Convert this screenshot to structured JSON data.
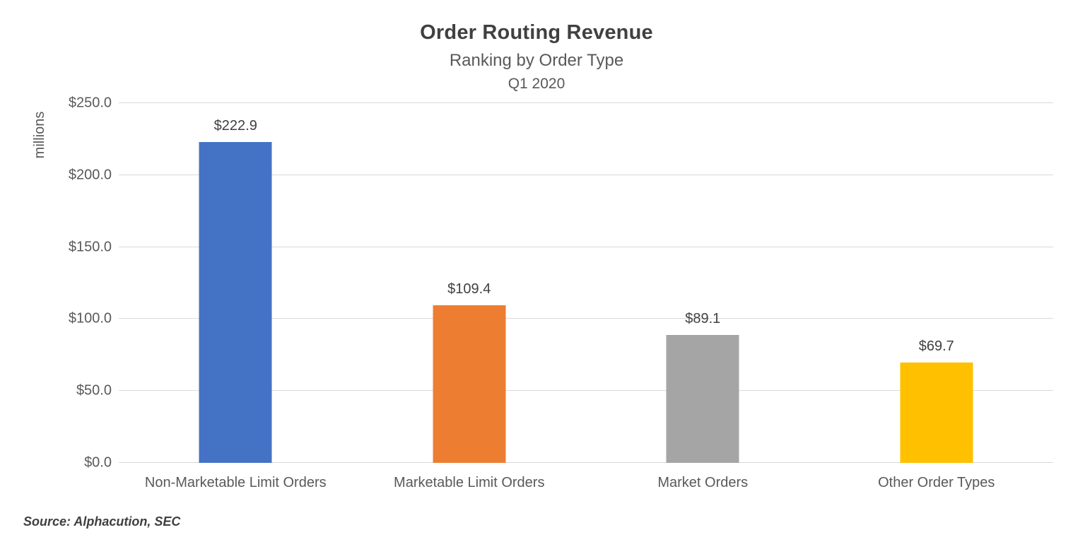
{
  "chart_data": {
    "type": "bar",
    "title": "Order Routing Revenue",
    "subtitle": "Ranking by Order Type",
    "period": "Q1 2020",
    "y_axis_title": "millions",
    "categories": [
      "Non-Marketable Limit Orders",
      "Marketable Limit Orders",
      "Market Orders",
      "Other Order Types"
    ],
    "values": [
      222.9,
      109.4,
      89.1,
      69.7
    ],
    "data_labels": [
      "$222.9",
      "$109.4",
      "$89.1",
      "$69.7"
    ],
    "bar_colors": [
      "#4472C4",
      "#ED7D31",
      "#A5A5A5",
      "#FFC000"
    ],
    "ylim": [
      0,
      250
    ],
    "yticks": [
      {
        "value": 0,
        "label": "$0.0"
      },
      {
        "value": 50,
        "label": "$50.0"
      },
      {
        "value": 100,
        "label": "$100.0"
      },
      {
        "value": 150,
        "label": "$150.0"
      },
      {
        "value": 200,
        "label": "$200.0"
      },
      {
        "value": 250,
        "label": "$250.0"
      }
    ],
    "grid": true,
    "legend_position": "none",
    "gridline_color": "#D9D9D9",
    "source": "Source: Alphacution, SEC"
  }
}
